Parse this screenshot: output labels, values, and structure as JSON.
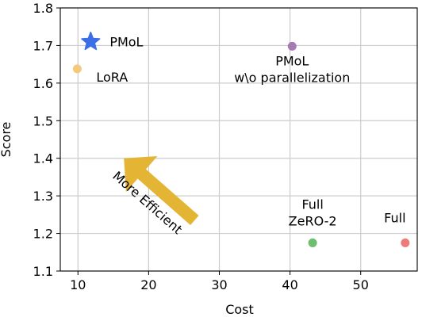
{
  "chart_data": {
    "type": "scatter",
    "xlabel": "Cost",
    "ylabel": "Score",
    "xlim": [
      7.5,
      58
    ],
    "ylim": [
      1.1,
      1.8
    ],
    "xticks": [
      "10",
      "20",
      "30",
      "40",
      "50"
    ],
    "yticks": [
      "1.1",
      "1.2",
      "1.3",
      "1.4",
      "1.5",
      "1.6",
      "1.7",
      "1.8"
    ],
    "grid": true,
    "points": [
      {
        "x": 11.8,
        "y": 1.71,
        "marker": "star",
        "color": "#3b6fe8",
        "label_lines": [
          "PMoL"
        ]
      },
      {
        "x": 9.9,
        "y": 1.638,
        "marker": "circle",
        "color": "#f5c97a",
        "label_lines": [
          "LoRA"
        ]
      },
      {
        "x": 40.3,
        "y": 1.698,
        "marker": "circle",
        "color": "#a77ab3",
        "label_lines": [
          "PMoL",
          "w\\o parallelization"
        ]
      },
      {
        "x": 43.2,
        "y": 1.175,
        "marker": "circle",
        "color": "#6cbf6c",
        "label_lines": [
          "Full",
          "ZeRO-2"
        ]
      },
      {
        "x": 56.3,
        "y": 1.175,
        "marker": "circle",
        "color": "#ef7a7a",
        "label_lines": [
          "Full"
        ]
      }
    ],
    "annotation": {
      "text": "More Efficient",
      "arrow_color": "#e4b535",
      "from": {
        "x": 26.5,
        "y": 1.235
      },
      "to": {
        "x": 16.5,
        "y": 1.4
      }
    }
  }
}
